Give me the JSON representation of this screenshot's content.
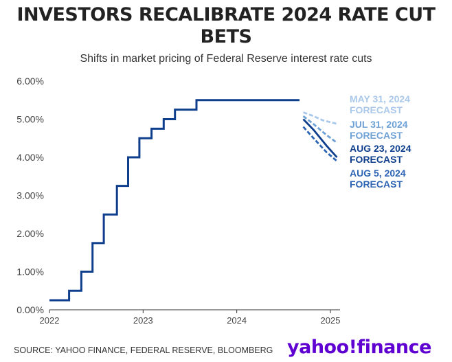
{
  "title": "INVESTORS RECALIBRATE 2024 RATE CUT BETS",
  "subtitle": "Shifts in market pricing of Federal Reserve interest rate cuts",
  "source": "SOURCE: YAHOO FINANCE, FEDERAL RESERVE, BLOOMBERG",
  "logo": "yahoo!finance",
  "colors": {
    "main": "#0f3e8c",
    "aug23": "#0f3e8c",
    "aug5": "#2d64b4",
    "jul31": "#6ea1d6",
    "may31": "#a9c8ea"
  },
  "chart_data": {
    "type": "line",
    "x_axis": {
      "ticks": [
        "2022",
        "2023",
        "2024",
        "2025"
      ],
      "min": 2022.0,
      "max": 2025.0
    },
    "y_axis": {
      "ticks": [
        "0.00%",
        "1.00%",
        "2.00%",
        "3.00%",
        "4.00%",
        "5.00%",
        "6.00%"
      ],
      "min": 0,
      "max": 6
    },
    "grid": false,
    "series": [
      {
        "name": "",
        "style": "step",
        "points": [
          [
            2022.0,
            0.25
          ],
          [
            2022.21,
            0.25
          ],
          [
            2022.21,
            0.5
          ],
          [
            2022.34,
            0.5
          ],
          [
            2022.34,
            1.0
          ],
          [
            2022.46,
            1.0
          ],
          [
            2022.46,
            1.75
          ],
          [
            2022.58,
            1.75
          ],
          [
            2022.58,
            2.5
          ],
          [
            2022.72,
            2.5
          ],
          [
            2022.72,
            3.25
          ],
          [
            2022.84,
            3.25
          ],
          [
            2022.84,
            4.0
          ],
          [
            2022.96,
            4.0
          ],
          [
            2022.96,
            4.5
          ],
          [
            2023.09,
            4.5
          ],
          [
            2023.09,
            4.75
          ],
          [
            2023.22,
            4.75
          ],
          [
            2023.22,
            5.0
          ],
          [
            2023.34,
            5.0
          ],
          [
            2023.34,
            5.25
          ],
          [
            2023.57,
            5.25
          ],
          [
            2023.57,
            5.5
          ],
          [
            2024.67,
            5.5
          ]
        ]
      },
      {
        "name": "MAY 31, 2024 FORECAST",
        "style": "dashed",
        "points": [
          [
            2024.71,
            5.18
          ],
          [
            2024.82,
            5.08
          ],
          [
            2024.92,
            4.97
          ],
          [
            2025.07,
            4.88
          ]
        ]
      },
      {
        "name": "JUL 31, 2024 FORECAST",
        "style": "dashed",
        "points": [
          [
            2024.71,
            5.08
          ],
          [
            2024.82,
            4.87
          ],
          [
            2024.95,
            4.6
          ],
          [
            2025.07,
            4.38
          ]
        ]
      },
      {
        "name": "AUG 23, 2024 FORECAST",
        "style": "solid",
        "points": [
          [
            2024.71,
            5.0
          ],
          [
            2024.82,
            4.72
          ],
          [
            2024.96,
            4.3
          ],
          [
            2025.07,
            4.0
          ]
        ]
      },
      {
        "name": "AUG 5, 2024 FORECAST",
        "style": "dashed",
        "points": [
          [
            2024.71,
            4.8
          ],
          [
            2024.82,
            4.5
          ],
          [
            2024.96,
            4.13
          ],
          [
            2025.07,
            3.9
          ]
        ]
      }
    ]
  }
}
